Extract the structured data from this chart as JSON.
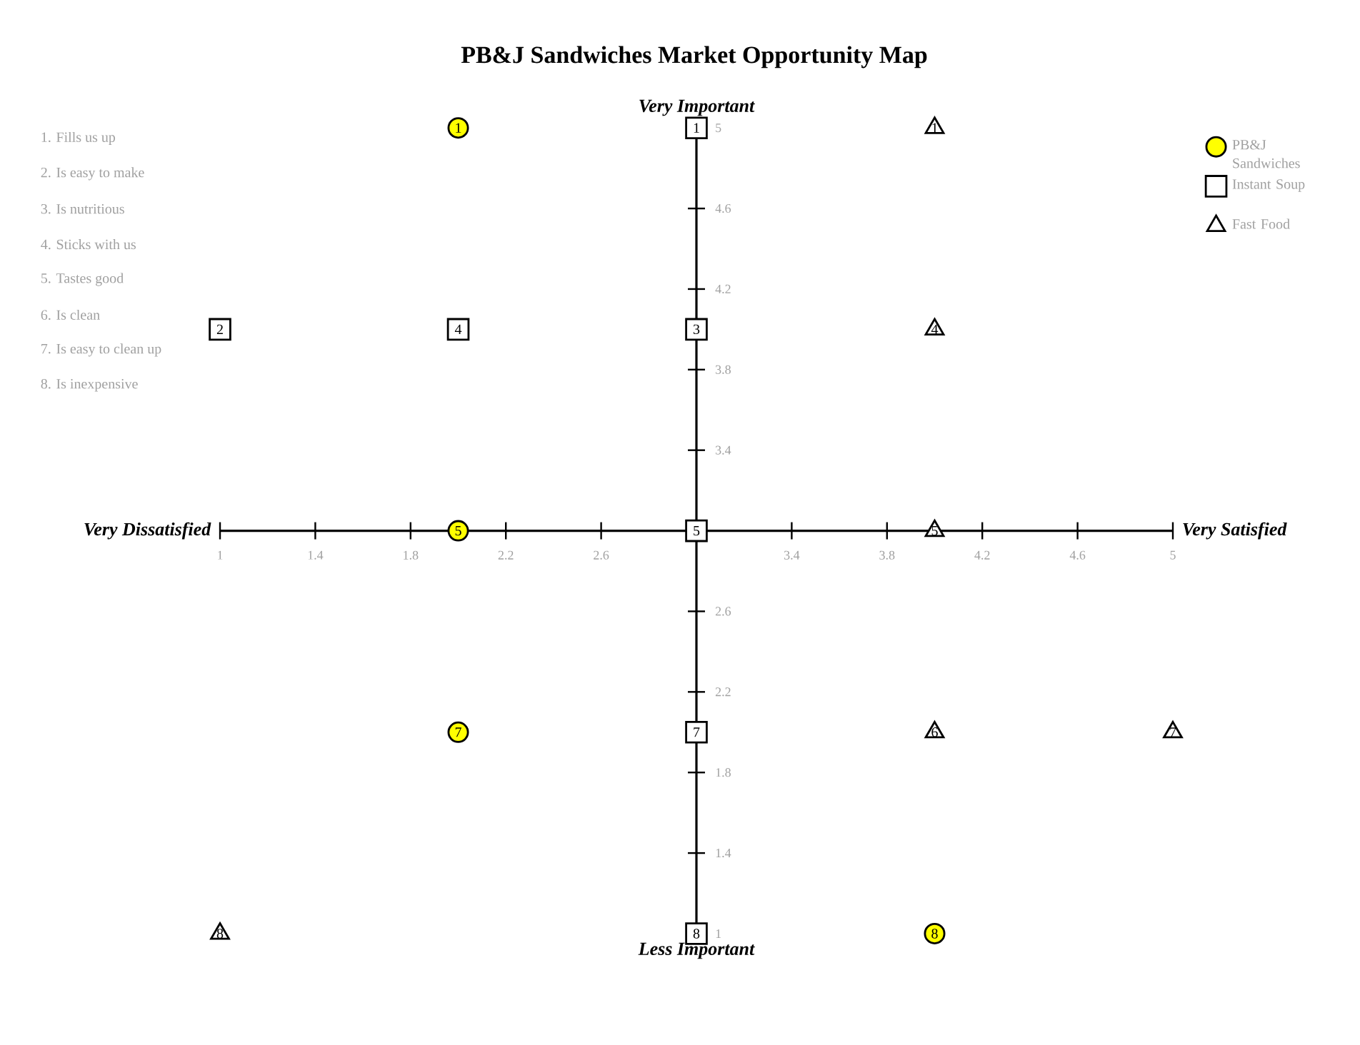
{
  "chart_data": {
    "type": "scatter",
    "title": "PB&J Sandwiches Market Opportunity Map",
    "xlim": [
      1,
      5
    ],
    "ylim": [
      1,
      5
    ],
    "xticks": [
      1,
      1.4,
      1.8,
      2.2,
      2.6,
      3.4,
      3.8,
      4.2,
      4.6,
      5
    ],
    "yticks": [
      1,
      1.4,
      1.8,
      2.2,
      2.6,
      3.4,
      3.8,
      4.2,
      4.6,
      5
    ],
    "legend": "top right",
    "series": [
      {
        "name": "PB&J Sandwiches",
        "color": "#ffff00",
        "marker": "circle",
        "x": [
          2,
          2,
          2,
          4
        ],
        "values": [
          5,
          3,
          2,
          1
        ]
      },
      {
        "name": "Instant Soup",
        "color": "#ffffff",
        "marker": "square",
        "x": [
          3,
          1,
          3,
          2,
          3,
          3,
          3
        ],
        "values": [
          5,
          4,
          4,
          4,
          3,
          2,
          1
        ]
      },
      {
        "name": "Fast Food",
        "color": "#ffffff",
        "marker": "triangle",
        "x": [
          4,
          4,
          4,
          4,
          5,
          1
        ],
        "values": [
          5,
          4,
          3,
          2,
          2,
          1
        ]
      }
    ],
    "annotations": [
      "1. Fills us up",
      "2. Is easy to make",
      "3. Is nutritious",
      "4. Sticks with us",
      "5. Tastes good",
      "6. Is clean",
      "7. Is easy to clean up",
      "8. Is inexpensive",
      {
        "text": "Very Important",
        "x": 3,
        "y": 5
      },
      {
        "text": "Less Important",
        "x": 3,
        "y": 1
      },
      "Very Dissatisfied",
      "Very Satisfied",
      {
        "text": "1",
        "x": 2,
        "y": 5
      },
      {
        "text": "5",
        "x": 2,
        "y": 3
      },
      {
        "text": "7",
        "x": 2,
        "y": 2
      },
      {
        "text": "8",
        "x": 4,
        "y": 1
      },
      {
        "text": "1",
        "x": 3,
        "y": 5
      },
      {
        "text": "2",
        "x": 1,
        "y": 4
      },
      {
        "text": "3",
        "x": 3,
        "y": 4
      },
      {
        "text": "4",
        "x": 2,
        "y": 4
      },
      {
        "text": "5",
        "x": 3,
        "y": 3
      },
      {
        "text": "7",
        "x": 3,
        "y": 2
      },
      {
        "text": "8",
        "x": 3,
        "y": 1
      },
      {
        "text": "1",
        "x": 4,
        "y": 5
      },
      {
        "text": "4",
        "x": 4,
        "y": 4
      },
      {
        "text": "5",
        "x": 4,
        "y": 3
      },
      {
        "text": "6",
        "x": 4,
        "y": 2
      },
      {
        "text": "7",
        "x": 5,
        "y": 2
      },
      {
        "text": "8",
        "x": 1,
        "y": 1
      }
    ]
  }
}
